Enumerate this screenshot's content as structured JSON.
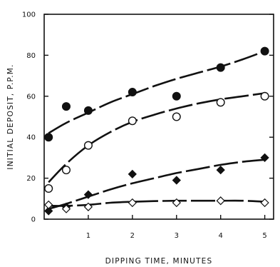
{
  "chart_data": {
    "type": "scatter",
    "title": "",
    "xlabel": "DIPPING TIME, MINUTES",
    "ylabel": "INITIAL DEPOSIT, P.P.M.",
    "xlim": [
      0,
      5.2
    ],
    "ylim": [
      0,
      100
    ],
    "x_ticks": [
      {
        "value": 1,
        "label": "1"
      },
      {
        "value": 2,
        "label": "2"
      },
      {
        "value": 3,
        "label": "3"
      },
      {
        "value": 4,
        "label": "4"
      },
      {
        "value": 5,
        "label": "5"
      }
    ],
    "y_ticks": [
      {
        "value": 0,
        "label": "0"
      },
      {
        "value": 20,
        "label": "20"
      },
      {
        "value": 40,
        "label": "40"
      },
      {
        "value": 60,
        "label": "60"
      },
      {
        "value": 80,
        "label": "80"
      },
      {
        "value": 100,
        "label": "100"
      }
    ],
    "grid": false,
    "legend": "none",
    "series": [
      {
        "marker": "filled-circle",
        "points": [
          [
            0.1,
            40
          ],
          [
            0.5,
            55
          ],
          [
            1,
            53
          ],
          [
            2,
            62
          ],
          [
            3,
            60
          ],
          [
            4,
            74
          ],
          [
            5,
            82
          ]
        ],
        "fit_curve": [
          [
            0.1,
            42
          ],
          [
            0.5,
            47
          ],
          [
            1,
            52
          ],
          [
            1.5,
            57
          ],
          [
            2,
            61
          ],
          [
            2.5,
            65
          ],
          [
            3,
            68.5
          ],
          [
            3.5,
            71.5
          ],
          [
            4,
            74.5
          ],
          [
            4.5,
            78
          ],
          [
            5,
            82
          ]
        ]
      },
      {
        "marker": "open-circle",
        "points": [
          [
            0.1,
            15
          ],
          [
            0.5,
            24
          ],
          [
            1,
            36
          ],
          [
            2,
            48
          ],
          [
            3,
            50
          ],
          [
            4,
            57
          ],
          [
            5,
            60
          ]
        ],
        "fit_curve": [
          [
            0.1,
            18
          ],
          [
            0.5,
            27
          ],
          [
            1,
            36
          ],
          [
            1.5,
            42.5
          ],
          [
            2,
            47.5
          ],
          [
            2.5,
            51
          ],
          [
            3,
            54
          ],
          [
            3.5,
            56.5
          ],
          [
            4,
            58.5
          ],
          [
            4.5,
            60
          ],
          [
            5,
            61.5
          ]
        ]
      },
      {
        "marker": "filled-diamond",
        "points": [
          [
            0.1,
            4
          ],
          [
            0.5,
            6
          ],
          [
            1,
            12
          ],
          [
            2,
            22
          ],
          [
            3,
            19
          ],
          [
            4,
            24
          ],
          [
            5,
            30
          ]
        ],
        "fit_curve": [
          [
            0.1,
            5
          ],
          [
            0.5,
            7.5
          ],
          [
            1,
            11
          ],
          [
            1.5,
            14.5
          ],
          [
            2,
            17.5
          ],
          [
            2.5,
            20
          ],
          [
            3,
            22.5
          ],
          [
            3.5,
            24.5
          ],
          [
            4,
            26.5
          ],
          [
            4.5,
            28
          ],
          [
            5,
            29
          ]
        ]
      },
      {
        "marker": "open-diamond",
        "points": [
          [
            0.1,
            7
          ],
          [
            0.5,
            5
          ],
          [
            1,
            6
          ],
          [
            2,
            8
          ],
          [
            3,
            8
          ],
          [
            4,
            9
          ],
          [
            5,
            8
          ]
        ],
        "fit_curve": [
          [
            0.1,
            6.5
          ],
          [
            0.5,
            6.5
          ],
          [
            1,
            7
          ],
          [
            1.5,
            8
          ],
          [
            2,
            8.5
          ],
          [
            2.5,
            8.8
          ],
          [
            3,
            9
          ],
          [
            3.5,
            9
          ],
          [
            4,
            9
          ],
          [
            4.5,
            9
          ],
          [
            5,
            8.5
          ]
        ]
      }
    ]
  }
}
